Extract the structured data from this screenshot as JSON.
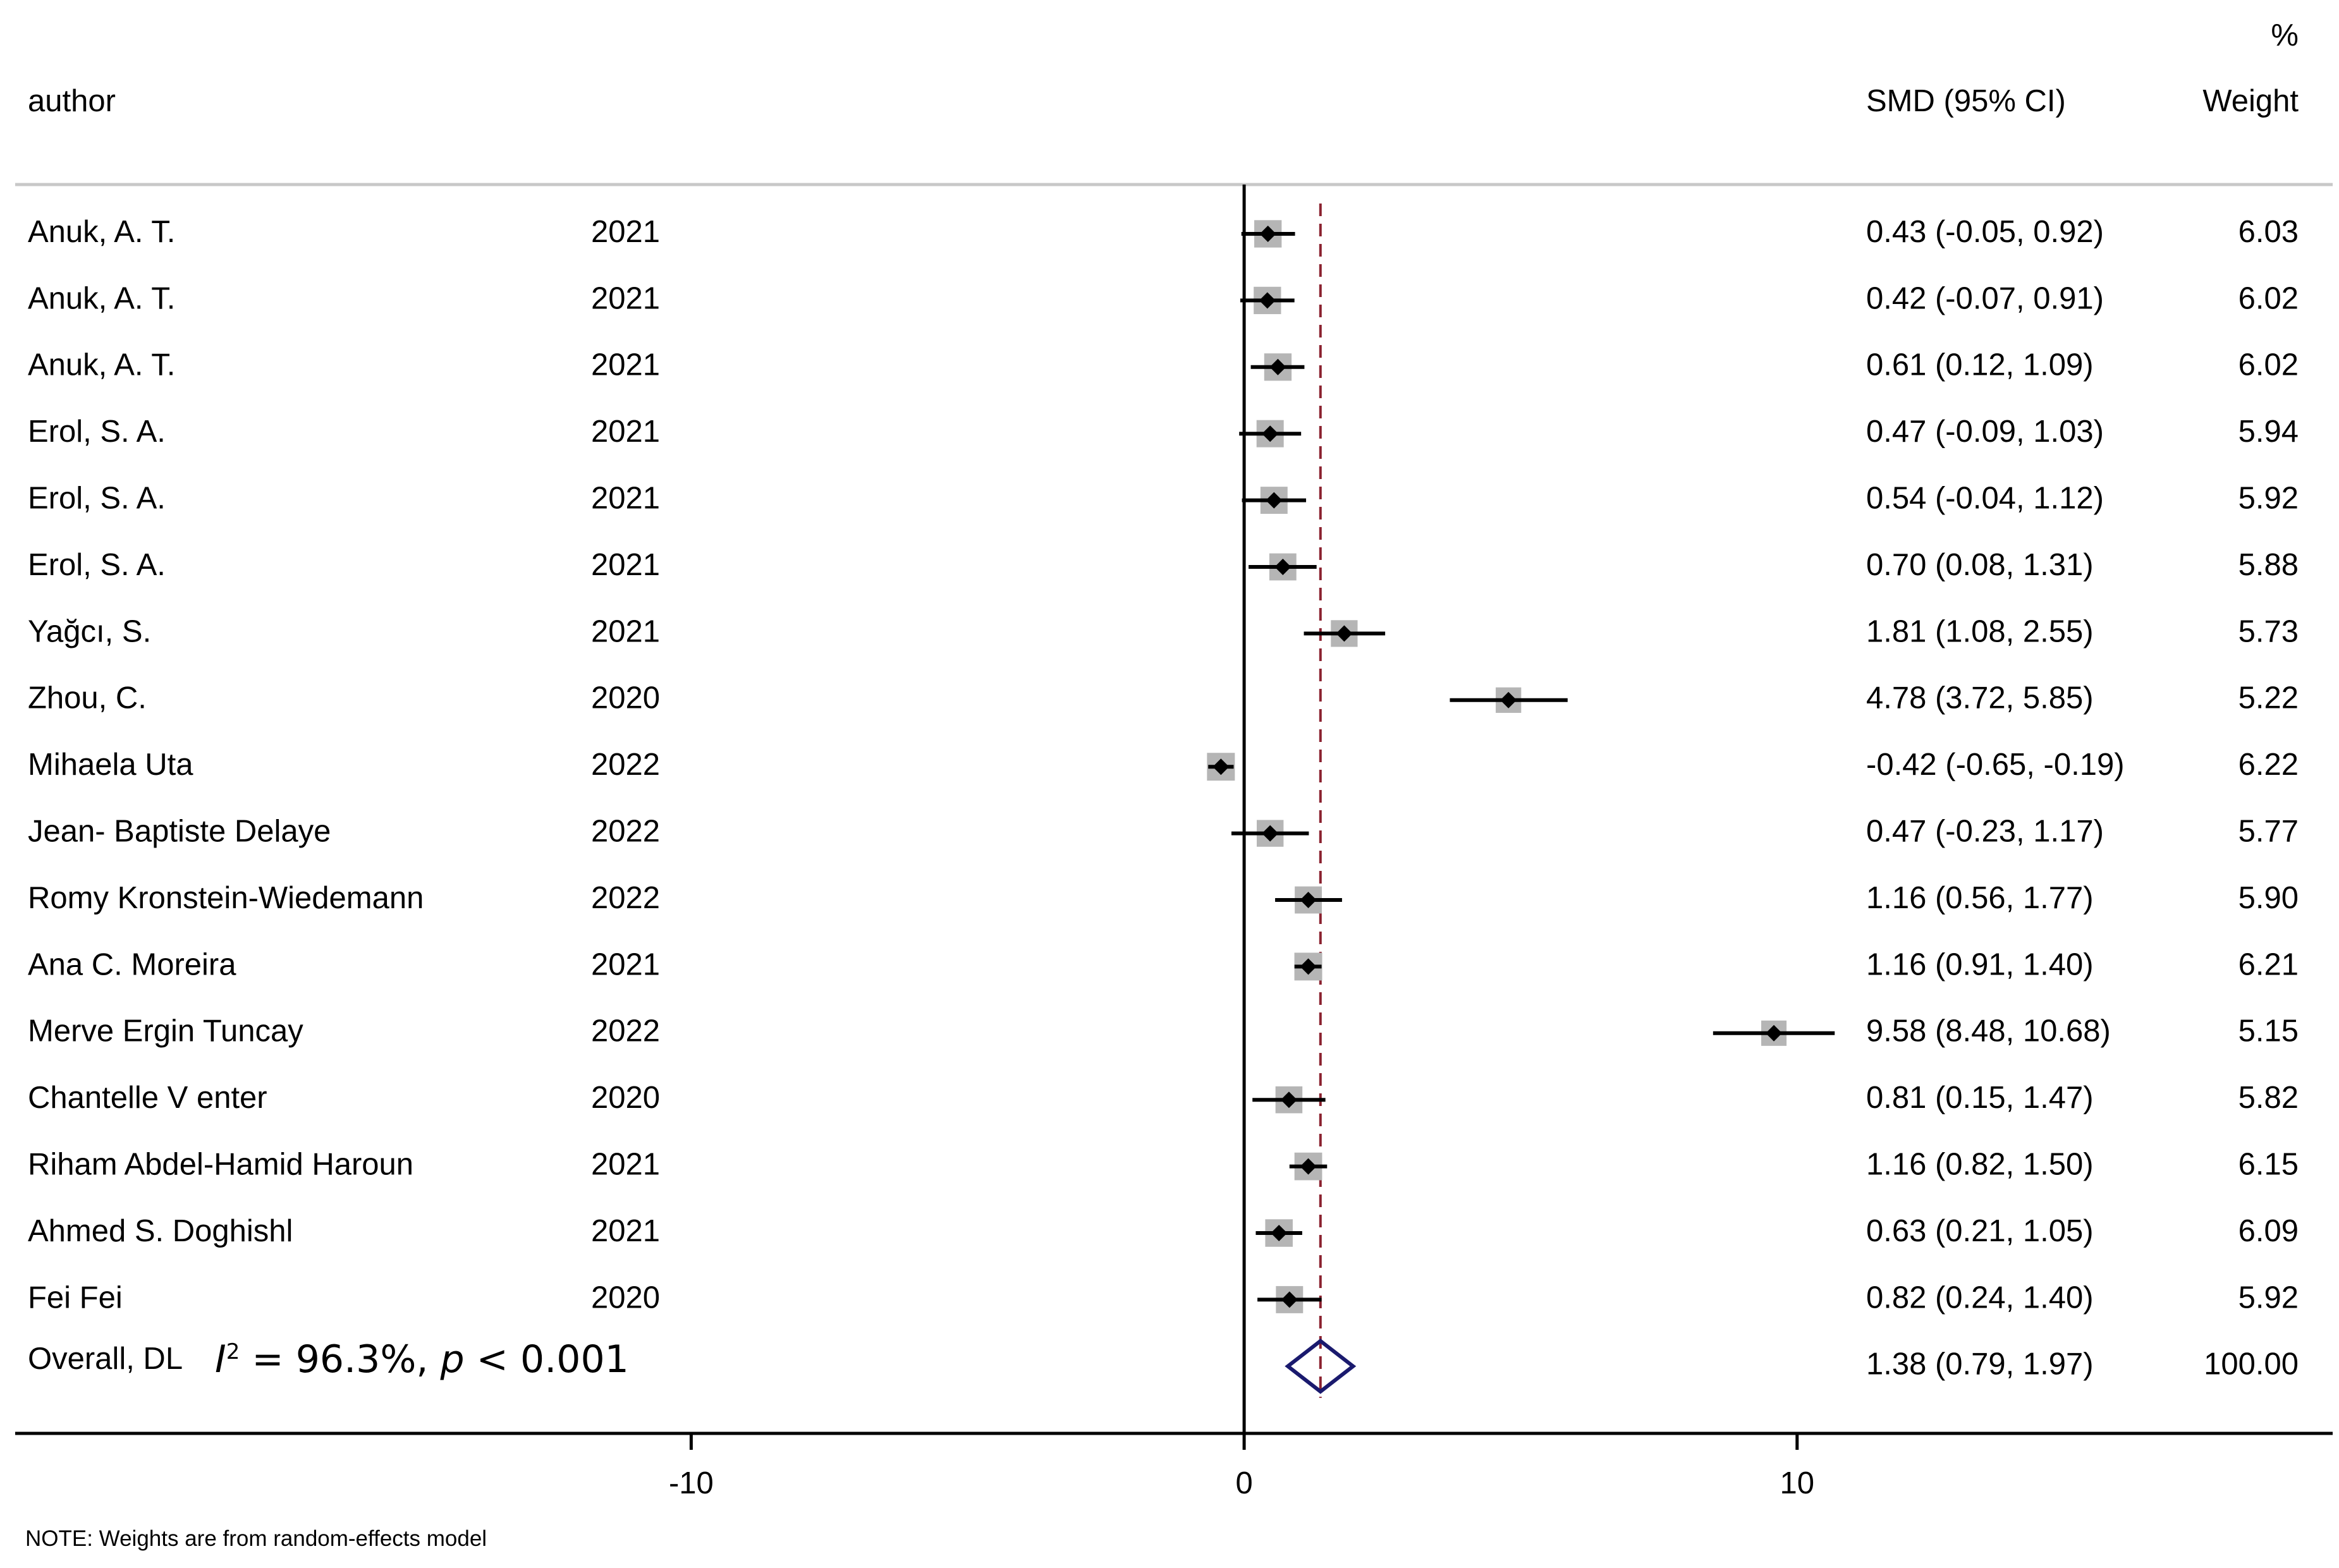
{
  "headers": {
    "author": "author",
    "smd": "SMD (95% CI)",
    "weight_pct": "%",
    "weight": "Weight"
  },
  "overall": {
    "label": "Overall, DL",
    "i2_symbol": "I",
    "i2_text": " = 96.3%, ",
    "p_symbol": "p",
    "p_text": " < 0.001"
  },
  "note": "NOTE: Weights are from random-effects model",
  "colors": {
    "square": "#b5b5b5",
    "estimate_marker": "#000000",
    "ci_line": "#000000",
    "overall_diamond": "#1a1a6e",
    "overall_line": "#8b2230",
    "frame_line": "#c8c8c8"
  },
  "chart_data": {
    "type": "forest",
    "xlim": [
      -22.5,
      19.8
    ],
    "xticks": [
      {
        "value": -10,
        "label": "-10"
      },
      {
        "value": 0,
        "label": "0"
      },
      {
        "value": 10,
        "label": "10"
      }
    ],
    "null_line": 0,
    "overall_line": 1.38,
    "studies": [
      {
        "author": "Anuk, A. T.",
        "year": "2021",
        "smd": 0.43,
        "lo": -0.05,
        "hi": 0.92,
        "ci_text": "0.43 (-0.05, 0.92)",
        "weight": 6.03,
        "weight_text": "6.03"
      },
      {
        "author": "Anuk, A. T.",
        "year": "2021",
        "smd": 0.42,
        "lo": -0.07,
        "hi": 0.91,
        "ci_text": "0.42 (-0.07, 0.91)",
        "weight": 6.02,
        "weight_text": "6.02"
      },
      {
        "author": "Anuk, A. T.",
        "year": "2021",
        "smd": 0.61,
        "lo": 0.12,
        "hi": 1.09,
        "ci_text": "0.61 (0.12, 1.09)",
        "weight": 6.02,
        "weight_text": "6.02"
      },
      {
        "author": "Erol, S. A.",
        "year": "2021",
        "smd": 0.47,
        "lo": -0.09,
        "hi": 1.03,
        "ci_text": "0.47 (-0.09, 1.03)",
        "weight": 5.94,
        "weight_text": "5.94"
      },
      {
        "author": "Erol, S. A.",
        "year": "2021",
        "smd": 0.54,
        "lo": -0.04,
        "hi": 1.12,
        "ci_text": "0.54 (-0.04, 1.12)",
        "weight": 5.92,
        "weight_text": "5.92"
      },
      {
        "author": "Erol, S. A.",
        "year": "2021",
        "smd": 0.7,
        "lo": 0.08,
        "hi": 1.31,
        "ci_text": "0.70 (0.08, 1.31)",
        "weight": 5.88,
        "weight_text": "5.88"
      },
      {
        "author": "Yağcı, S.",
        "year": "2021",
        "smd": 1.81,
        "lo": 1.08,
        "hi": 2.55,
        "ci_text": "1.81 (1.08, 2.55)",
        "weight": 5.73,
        "weight_text": "5.73"
      },
      {
        "author": "Zhou, C.",
        "year": "2020",
        "smd": 4.78,
        "lo": 3.72,
        "hi": 5.85,
        "ci_text": "4.78 (3.72, 5.85)",
        "weight": 5.22,
        "weight_text": "5.22"
      },
      {
        "author": "Mihaela Uta",
        "year": "2022",
        "smd": -0.42,
        "lo": -0.65,
        "hi": -0.19,
        "ci_text": "-0.42 (-0.65, -0.19)",
        "weight": 6.22,
        "weight_text": "6.22"
      },
      {
        "author": "Jean- Baptiste Delaye",
        "year": "2022",
        "smd": 0.47,
        "lo": -0.23,
        "hi": 1.17,
        "ci_text": "0.47 (-0.23, 1.17)",
        "weight": 5.77,
        "weight_text": "5.77"
      },
      {
        "author": "Romy Kronstein-Wiedemann",
        "year": "2022",
        "smd": 1.16,
        "lo": 0.56,
        "hi": 1.77,
        "ci_text": "1.16 (0.56, 1.77)",
        "weight": 5.9,
        "weight_text": "5.90"
      },
      {
        "author": "Ana C. Moreira",
        "year": "2021",
        "smd": 1.16,
        "lo": 0.91,
        "hi": 1.4,
        "ci_text": "1.16 (0.91, 1.40)",
        "weight": 6.21,
        "weight_text": "6.21"
      },
      {
        "author": "Merve Ergin Tuncay",
        "year": "2022",
        "smd": 9.58,
        "lo": 8.48,
        "hi": 10.68,
        "ci_text": "9.58 (8.48, 10.68)",
        "weight": 5.15,
        "weight_text": "5.15"
      },
      {
        "author": "Chantelle V enter",
        "year": "2020",
        "smd": 0.81,
        "lo": 0.15,
        "hi": 1.47,
        "ci_text": "0.81 (0.15, 1.47)",
        "weight": 5.82,
        "weight_text": "5.82"
      },
      {
        "author": "Riham Abdel-Hamid Haroun",
        "year": "2021",
        "smd": 1.16,
        "lo": 0.82,
        "hi": 1.5,
        "ci_text": "1.16 (0.82, 1.50)",
        "weight": 6.15,
        "weight_text": "6.15"
      },
      {
        "author": "Ahmed S. Doghishl",
        "year": "2021",
        "smd": 0.63,
        "lo": 0.21,
        "hi": 1.05,
        "ci_text": "0.63 (0.21, 1.05)",
        "weight": 6.09,
        "weight_text": "6.09"
      },
      {
        "author": "Fei Fei",
        "year": "2020",
        "smd": 0.82,
        "lo": 0.24,
        "hi": 1.4,
        "ci_text": "0.82 (0.24, 1.40)",
        "weight": 5.92,
        "weight_text": "5.92"
      }
    ],
    "overall_estimate": {
      "smd": 1.38,
      "lo": 0.79,
      "hi": 1.97,
      "ci_text": "1.38 (0.79, 1.97)",
      "weight_text": "100.00"
    }
  }
}
